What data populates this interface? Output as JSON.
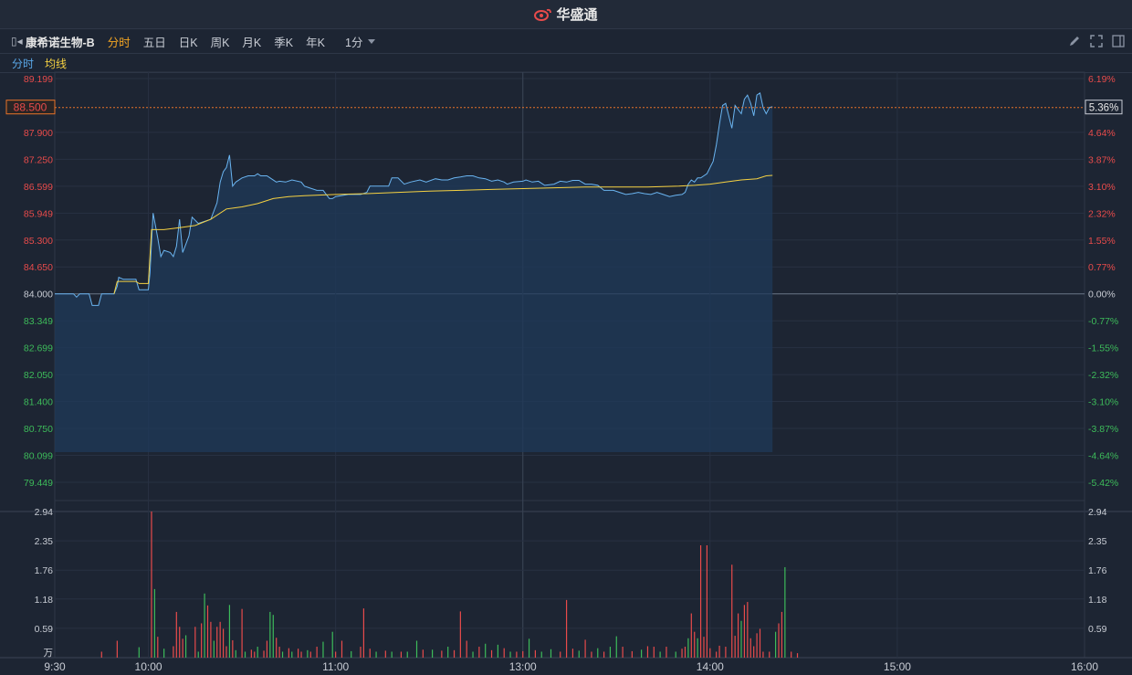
{
  "app": {
    "brand": "华盛通"
  },
  "toolbar": {
    "stock_name": "康希诺生物-B",
    "tabs": [
      "分时",
      "五日",
      "日K",
      "周K",
      "月K",
      "季K",
      "年K"
    ],
    "active_tab": 0,
    "period": "1分"
  },
  "legend": {
    "line1": "分时",
    "line2": "均线"
  },
  "price_axis": {
    "labels": [
      "89.199",
      "87.900",
      "87.250",
      "86.599",
      "85.949",
      "85.300",
      "84.650",
      "84.000",
      "83.349",
      "82.699",
      "82.050",
      "81.400",
      "80.750",
      "80.099",
      "79.449"
    ],
    "pct_labels": [
      "6.19%",
      "4.64%",
      "3.87%",
      "3.10%",
      "2.32%",
      "1.55%",
      "0.77%",
      "0.00%",
      "-0.77%",
      "-1.55%",
      "-2.32%",
      "-3.10%",
      "-3.87%",
      "-4.64%",
      "-5.42%"
    ],
    "prev_close": 84.0,
    "current_price": "88.500",
    "current_pct": "5.36%"
  },
  "volume_axis": {
    "labels": [
      "2.94",
      "2.35",
      "1.76",
      "1.18",
      "0.59"
    ],
    "unit": "万"
  },
  "time_axis": {
    "labels": [
      "9:30",
      "10:00",
      "11:00",
      "13:00",
      "14:00",
      "15:00",
      "16:00"
    ]
  },
  "colors": {
    "up": "#e84b4b",
    "down": "#3dbb5a",
    "price_line": "#6ab4f0",
    "avg_line": "#f5d142",
    "flat": "#c8ccd4"
  },
  "chart_data": {
    "type": "line",
    "x_unit": "minutes since 9:30 on trading time axis",
    "price_series": {
      "name": "分时",
      "points": [
        [
          0,
          84.0
        ],
        [
          6,
          84.0
        ],
        [
          7,
          83.92
        ],
        [
          8,
          84.0
        ],
        [
          11,
          84.0
        ],
        [
          12,
          83.72
        ],
        [
          14,
          83.72
        ],
        [
          15,
          84.0
        ],
        [
          19,
          84.0
        ],
        [
          20,
          84.18
        ],
        [
          20.5,
          84.4
        ],
        [
          22,
          84.35
        ],
        [
          26,
          84.35
        ],
        [
          27,
          84.1
        ],
        [
          30,
          84.1
        ],
        [
          30.5,
          84.5
        ],
        [
          31,
          85.25
        ],
        [
          31.5,
          85.95
        ],
        [
          32,
          85.75
        ],
        [
          33,
          85.35
        ],
        [
          34,
          84.9
        ],
        [
          35,
          85.05
        ],
        [
          37,
          85.0
        ],
        [
          38,
          84.9
        ],
        [
          39,
          85.15
        ],
        [
          40,
          85.8
        ],
        [
          41,
          85.0
        ],
        [
          42,
          85.2
        ],
        [
          43,
          85.4
        ],
        [
          44,
          85.85
        ],
        [
          46,
          85.7
        ],
        [
          48,
          85.75
        ],
        [
          50,
          85.8
        ],
        [
          51,
          86.0
        ],
        [
          52,
          86.2
        ],
        [
          53,
          86.7
        ],
        [
          54,
          86.95
        ],
        [
          55,
          87.05
        ],
        [
          56,
          87.35
        ],
        [
          57,
          86.6
        ],
        [
          58,
          86.7
        ],
        [
          60,
          86.8
        ],
        [
          62,
          86.85
        ],
        [
          64,
          86.85
        ],
        [
          65,
          86.9
        ],
        [
          66,
          86.85
        ],
        [
          68,
          86.85
        ],
        [
          69,
          86.8
        ],
        [
          71,
          86.7
        ],
        [
          72,
          86.72
        ],
        [
          74,
          86.7
        ],
        [
          76,
          86.75
        ],
        [
          79,
          86.7
        ],
        [
          80,
          86.6
        ],
        [
          82,
          86.55
        ],
        [
          84,
          86.5
        ],
        [
          86,
          86.5
        ],
        [
          87,
          86.4
        ],
        [
          88,
          86.3
        ],
        [
          89,
          86.3
        ],
        [
          90,
          86.35
        ],
        [
          94,
          86.4
        ],
        [
          98,
          86.4
        ],
        [
          100,
          86.45
        ],
        [
          101,
          86.6
        ],
        [
          104,
          86.6
        ],
        [
          107,
          86.6
        ],
        [
          108,
          86.8
        ],
        [
          110,
          86.8
        ],
        [
          112,
          86.65
        ],
        [
          114,
          86.7
        ],
        [
          117,
          86.75
        ],
        [
          119,
          86.7
        ],
        [
          122,
          86.78
        ],
        [
          124,
          86.75
        ],
        [
          126,
          86.75
        ],
        [
          128,
          86.8
        ],
        [
          130,
          86.82
        ],
        [
          132,
          86.85
        ],
        [
          134,
          86.85
        ],
        [
          136,
          86.8
        ],
        [
          138,
          86.78
        ],
        [
          140,
          86.72
        ],
        [
          142,
          86.75
        ],
        [
          144,
          86.7
        ],
        [
          145,
          86.65
        ],
        [
          147,
          86.7
        ],
        [
          150,
          86.72
        ],
        [
          151,
          86.75
        ],
        [
          153,
          86.7
        ],
        [
          155,
          86.72
        ],
        [
          157,
          86.62
        ],
        [
          160,
          86.65
        ],
        [
          162,
          86.72
        ],
        [
          164,
          86.7
        ],
        [
          166,
          86.74
        ],
        [
          168,
          86.74
        ],
        [
          170,
          86.65
        ],
        [
          172,
          86.65
        ],
        [
          174,
          86.62
        ],
        [
          176,
          86.5
        ],
        [
          179,
          86.5
        ],
        [
          181,
          86.45
        ],
        [
          183,
          86.4
        ],
        [
          185,
          86.42
        ],
        [
          187,
          86.45
        ],
        [
          189,
          86.42
        ],
        [
          191,
          86.4
        ],
        [
          193,
          86.45
        ],
        [
          195,
          86.4
        ],
        [
          197,
          86.35
        ],
        [
          199,
          86.38
        ],
        [
          201,
          86.4
        ],
        [
          202,
          86.45
        ],
        [
          203,
          86.65
        ],
        [
          204,
          86.75
        ],
        [
          205,
          86.7
        ],
        [
          206,
          86.8
        ],
        [
          207,
          86.8
        ],
        [
          209,
          86.9
        ],
        [
          211,
          87.2
        ],
        [
          212,
          87.6
        ],
        [
          213,
          88.1
        ],
        [
          214,
          88.55
        ],
        [
          215,
          88.6
        ],
        [
          216,
          88.3
        ],
        [
          217,
          88.0
        ],
        [
          218,
          88.55
        ],
        [
          219,
          88.45
        ],
        [
          220,
          88.35
        ],
        [
          221,
          88.7
        ],
        [
          222,
          88.8
        ],
        [
          223,
          88.6
        ],
        [
          224,
          88.3
        ],
        [
          225,
          88.8
        ],
        [
          226,
          88.85
        ],
        [
          227,
          88.5
        ],
        [
          228,
          88.35
        ],
        [
          229,
          88.5
        ],
        [
          230,
          88.52
        ]
      ]
    },
    "avg_series": {
      "name": "均线",
      "points": [
        [
          19,
          84.0
        ],
        [
          20,
          84.3
        ],
        [
          26,
          84.3
        ],
        [
          27,
          84.25
        ],
        [
          30,
          84.25
        ],
        [
          31,
          85.55
        ],
        [
          35,
          85.55
        ],
        [
          40,
          85.6
        ],
        [
          45,
          85.65
        ],
        [
          50,
          85.8
        ],
        [
          55,
          86.05
        ],
        [
          60,
          86.1
        ],
        [
          65,
          86.18
        ],
        [
          70,
          86.3
        ],
        [
          75,
          86.35
        ],
        [
          80,
          86.37
        ],
        [
          90,
          86.4
        ],
        [
          100,
          86.42
        ],
        [
          110,
          86.45
        ],
        [
          120,
          86.48
        ],
        [
          130,
          86.5
        ],
        [
          140,
          86.52
        ],
        [
          150,
          86.54
        ],
        [
          160,
          86.56
        ],
        [
          170,
          86.58
        ],
        [
          180,
          86.58
        ],
        [
          190,
          86.58
        ],
        [
          200,
          86.6
        ],
        [
          205,
          86.62
        ],
        [
          210,
          86.65
        ],
        [
          215,
          86.7
        ],
        [
          220,
          86.75
        ],
        [
          225,
          86.78
        ],
        [
          228,
          86.85
        ],
        [
          230,
          86.86
        ]
      ]
    },
    "volume_series": {
      "name": "volume",
      "unit": "万",
      "bars": [
        [
          15,
          0.12,
          "up"
        ],
        [
          20,
          0.34,
          "up"
        ],
        [
          27,
          0.21,
          "down"
        ],
        [
          31,
          2.94,
          "up"
        ],
        [
          32,
          1.38,
          "down"
        ],
        [
          33,
          0.42,
          "up"
        ],
        [
          35,
          0.18,
          "down"
        ],
        [
          38,
          0.23,
          "up"
        ],
        [
          39,
          0.92,
          "up"
        ],
        [
          40,
          0.62,
          "up"
        ],
        [
          41,
          0.38,
          "up"
        ],
        [
          42,
          0.45,
          "down"
        ],
        [
          45,
          0.62,
          "up"
        ],
        [
          46,
          0.12,
          "down"
        ],
        [
          47,
          0.69,
          "up"
        ],
        [
          48,
          1.29,
          "down"
        ],
        [
          49,
          1.05,
          "up"
        ],
        [
          50,
          0.72,
          "up"
        ],
        [
          51,
          0.34,
          "down"
        ],
        [
          52,
          0.62,
          "up"
        ],
        [
          53,
          0.72,
          "up"
        ],
        [
          54,
          0.58,
          "up"
        ],
        [
          55,
          0.23,
          "up"
        ],
        [
          56,
          1.06,
          "down"
        ],
        [
          57,
          0.35,
          "up"
        ],
        [
          58,
          0.15,
          "down"
        ],
        [
          60,
          0.98,
          "up"
        ],
        [
          61,
          0.12,
          "down"
        ],
        [
          63,
          0.16,
          "up"
        ],
        [
          64,
          0.12,
          "up"
        ],
        [
          65,
          0.22,
          "down"
        ],
        [
          67,
          0.14,
          "up"
        ],
        [
          68,
          0.34,
          "up"
        ],
        [
          69,
          0.92,
          "down"
        ],
        [
          70,
          0.86,
          "down"
        ],
        [
          71,
          0.4,
          "up"
        ],
        [
          72,
          0.22,
          "up"
        ],
        [
          73,
          0.12,
          "down"
        ],
        [
          75,
          0.19,
          "up"
        ],
        [
          76,
          0.12,
          "down"
        ],
        [
          78,
          0.18,
          "up"
        ],
        [
          79,
          0.12,
          "up"
        ],
        [
          81,
          0.15,
          "down"
        ],
        [
          82,
          0.12,
          "up"
        ],
        [
          84,
          0.22,
          "up"
        ],
        [
          86,
          0.32,
          "down"
        ],
        [
          89,
          0.52,
          "down"
        ],
        [
          90,
          0.12,
          "up"
        ],
        [
          92,
          0.34,
          "up"
        ],
        [
          95,
          0.13,
          "down"
        ],
        [
          98,
          0.22,
          "up"
        ],
        [
          99,
          0.99,
          "up"
        ],
        [
          101,
          0.18,
          "up"
        ],
        [
          103,
          0.12,
          "down"
        ],
        [
          106,
          0.14,
          "up"
        ],
        [
          108,
          0.12,
          "down"
        ],
        [
          111,
          0.12,
          "up"
        ],
        [
          113,
          0.12,
          "down"
        ],
        [
          116,
          0.34,
          "down"
        ],
        [
          118,
          0.16,
          "up"
        ],
        [
          121,
          0.16,
          "down"
        ],
        [
          124,
          0.14,
          "up"
        ],
        [
          126,
          0.22,
          "down"
        ],
        [
          128,
          0.15,
          "up"
        ],
        [
          130,
          0.93,
          "up"
        ],
        [
          132,
          0.34,
          "up"
        ],
        [
          134,
          0.12,
          "down"
        ],
        [
          136,
          0.22,
          "up"
        ],
        [
          138,
          0.28,
          "down"
        ],
        [
          140,
          0.15,
          "up"
        ],
        [
          142,
          0.26,
          "down"
        ],
        [
          144,
          0.19,
          "up"
        ],
        [
          146,
          0.12,
          "down"
        ],
        [
          148,
          0.12,
          "up"
        ],
        [
          150,
          0.13,
          "up"
        ],
        [
          152,
          0.38,
          "down"
        ],
        [
          154,
          0.15,
          "up"
        ],
        [
          156,
          0.12,
          "down"
        ],
        [
          159,
          0.17,
          "down"
        ],
        [
          162,
          0.12,
          "up"
        ],
        [
          164,
          1.16,
          "up"
        ],
        [
          166,
          0.18,
          "up"
        ],
        [
          168,
          0.14,
          "down"
        ],
        [
          170,
          0.36,
          "up"
        ],
        [
          172,
          0.12,
          "up"
        ],
        [
          174,
          0.19,
          "down"
        ],
        [
          176,
          0.12,
          "up"
        ],
        [
          178,
          0.22,
          "down"
        ],
        [
          180,
          0.43,
          "down"
        ],
        [
          182,
          0.22,
          "up"
        ],
        [
          185,
          0.13,
          "up"
        ],
        [
          188,
          0.16,
          "down"
        ],
        [
          190,
          0.23,
          "up"
        ],
        [
          192,
          0.22,
          "up"
        ],
        [
          194,
          0.12,
          "down"
        ],
        [
          196,
          0.22,
          "up"
        ],
        [
          199,
          0.12,
          "down"
        ],
        [
          201,
          0.18,
          "up"
        ],
        [
          202,
          0.22,
          "up"
        ],
        [
          203,
          0.39,
          "down"
        ],
        [
          204,
          0.89,
          "up"
        ],
        [
          205,
          0.52,
          "up"
        ],
        [
          206,
          0.39,
          "down"
        ],
        [
          207,
          2.26,
          "up"
        ],
        [
          208,
          0.42,
          "up"
        ],
        [
          209,
          2.26,
          "up"
        ],
        [
          210,
          0.19,
          "up"
        ],
        [
          212,
          0.12,
          "up"
        ],
        [
          213,
          0.24,
          "up"
        ],
        [
          215,
          0.22,
          "up"
        ],
        [
          217,
          1.87,
          "up"
        ],
        [
          218,
          0.44,
          "up"
        ],
        [
          219,
          0.89,
          "up"
        ],
        [
          220,
          0.74,
          "down"
        ],
        [
          221,
          1.06,
          "up"
        ],
        [
          222,
          1.12,
          "up"
        ],
        [
          223,
          0.39,
          "up"
        ],
        [
          224,
          0.23,
          "up"
        ],
        [
          225,
          0.49,
          "up"
        ],
        [
          226,
          0.58,
          "up"
        ],
        [
          227,
          0.12,
          "up"
        ],
        [
          229,
          0.12,
          "up"
        ],
        [
          231,
          0.52,
          "down"
        ],
        [
          232,
          0.69,
          "up"
        ],
        [
          233,
          0.92,
          "up"
        ],
        [
          234,
          1.82,
          "down"
        ],
        [
          236,
          0.12,
          "up"
        ],
        [
          238,
          0.09,
          "up"
        ]
      ]
    },
    "xlim": [
      0,
      330
    ],
    "ylim": [
      79.449,
      89.199
    ],
    "volume_ylim": [
      0,
      2.94
    ],
    "grid": true
  }
}
